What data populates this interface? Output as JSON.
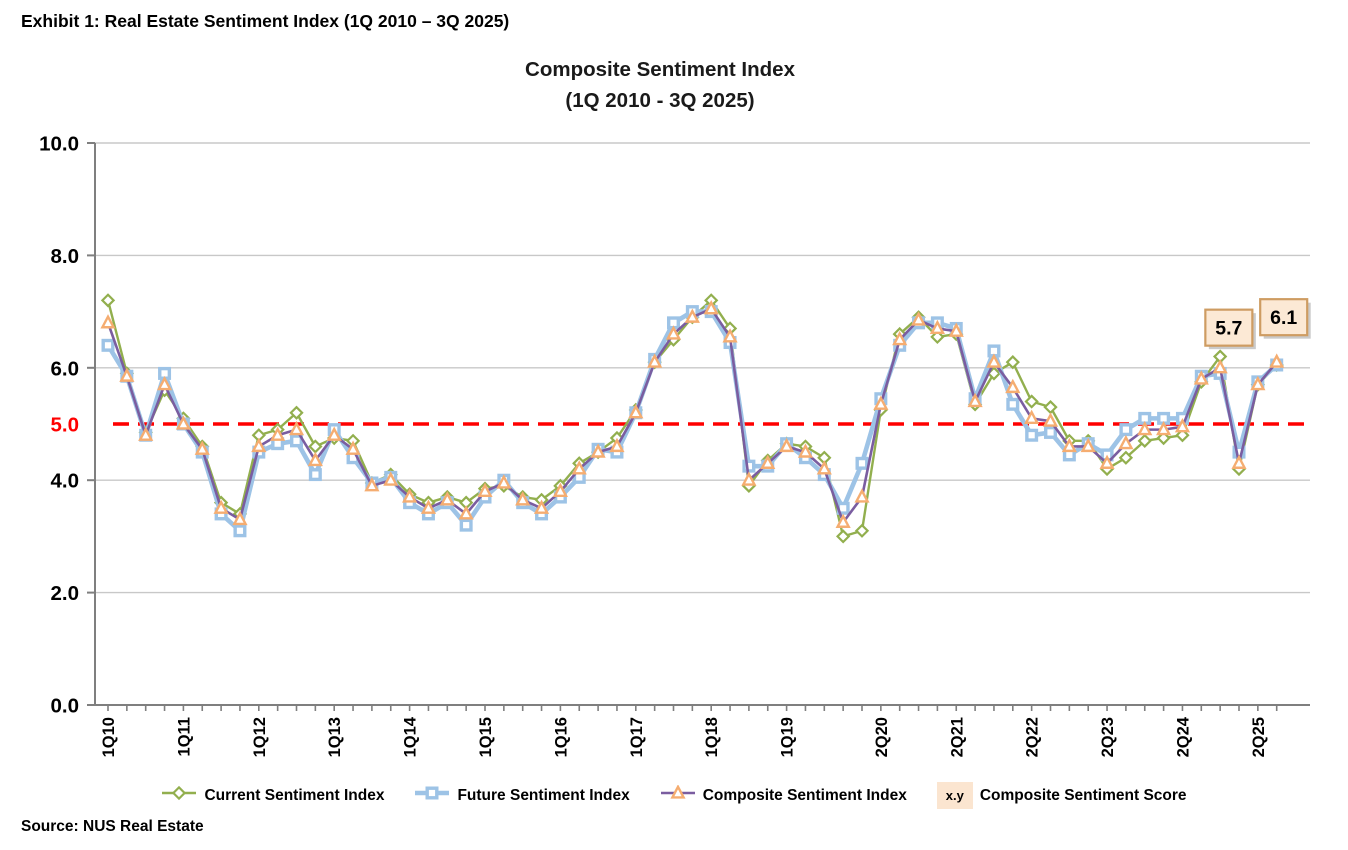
{
  "exhibit_title": "Exhibit 1: Real Estate Sentiment Index (1Q 2010 – 3Q 2025)",
  "source": "Source: NUS Real Estate",
  "chart_data": {
    "type": "line",
    "title": "Composite Sentiment Index",
    "subtitle": "(1Q 2010 - 3Q 2025)",
    "xlabel": "",
    "ylabel": "",
    "ylim": [
      0,
      10
    ],
    "grid": true,
    "legend_position": "bottom",
    "yticks": [
      0,
      2,
      4,
      6,
      8,
      10
    ],
    "ytick_labels": [
      "0.0",
      "2.0",
      "4.0",
      "6.0",
      "8.0",
      "10.0"
    ],
    "reference_line": {
      "value": 5.0,
      "label": "5.0",
      "color": "#FF0000",
      "style": "dashed"
    },
    "categories": [
      "1Q10",
      "2Q10",
      "3Q10",
      "4Q10",
      "1Q11",
      "2Q11",
      "3Q11",
      "4Q11",
      "1Q12",
      "2Q12",
      "3Q12",
      "4Q12",
      "1Q13",
      "2Q13",
      "3Q13",
      "4Q13",
      "1Q14",
      "2Q14",
      "3Q14",
      "4Q14",
      "1Q15",
      "2Q15",
      "3Q15",
      "4Q15",
      "1Q16",
      "2Q16",
      "3Q16",
      "4Q16",
      "1Q17",
      "2Q17",
      "3Q17",
      "4Q17",
      "1Q18",
      "2Q18",
      "3Q18",
      "4Q18",
      "1Q19",
      "2Q19",
      "3Q19",
      "4Q19",
      "1Q20",
      "2Q20",
      "3Q20",
      "4Q20",
      "1Q21",
      "2Q21",
      "3Q21",
      "4Q21",
      "1Q22",
      "2Q22",
      "3Q22",
      "4Q22",
      "1Q23",
      "2Q23",
      "3Q23",
      "4Q23",
      "1Q24",
      "2Q24",
      "3Q24",
      "4Q24",
      "1Q25",
      "2Q25",
      "3Q25"
    ],
    "xtick_labels": [
      "1Q10",
      "1Q11",
      "1Q12",
      "1Q13",
      "1Q14",
      "1Q15",
      "1Q16",
      "1Q17",
      "1Q18",
      "1Q19",
      "2Q20",
      "2Q21",
      "2Q22",
      "2Q23",
      "2Q24",
      "2Q25"
    ],
    "series": [
      {
        "name": "Current Sentiment Index",
        "marker": "diamond",
        "line_color": "#92AF4E",
        "marker_color": "#92AF4E",
        "line_width": 2.4,
        "values": [
          7.2,
          5.9,
          4.85,
          5.6,
          5.1,
          4.6,
          3.6,
          3.4,
          4.8,
          4.9,
          5.2,
          4.6,
          4.75,
          4.7,
          3.95,
          4.1,
          3.75,
          3.6,
          3.7,
          3.6,
          3.85,
          3.9,
          3.7,
          3.65,
          3.9,
          4.3,
          4.5,
          4.75,
          5.25,
          6.1,
          6.5,
          6.9,
          7.2,
          6.7,
          3.9,
          4.35,
          4.65,
          4.6,
          4.4,
          3.0,
          3.1,
          5.25,
          6.6,
          6.9,
          6.55,
          6.6,
          5.35,
          5.9,
          6.1,
          5.4,
          5.3,
          4.7,
          4.7,
          4.2,
          4.4,
          4.7,
          4.75,
          4.8,
          5.75,
          6.2,
          4.2,
          5.7,
          6.05
        ]
      },
      {
        "name": "Future Sentiment Index",
        "marker": "square",
        "line_color": "#9DC3E6",
        "marker_color": "#9DC3E6",
        "line_width": 4.6,
        "values": [
          6.4,
          5.85,
          4.8,
          5.9,
          5.0,
          4.5,
          3.4,
          3.1,
          4.5,
          4.65,
          4.7,
          4.1,
          4.9,
          4.4,
          3.95,
          4.05,
          3.6,
          3.4,
          3.6,
          3.2,
          3.7,
          4.0,
          3.6,
          3.4,
          3.7,
          4.05,
          4.55,
          4.5,
          5.2,
          6.15,
          6.8,
          7.0,
          7.0,
          6.45,
          4.25,
          4.25,
          4.65,
          4.4,
          4.1,
          3.5,
          4.3,
          5.45,
          6.4,
          6.8,
          6.8,
          6.7,
          5.45,
          6.3,
          5.35,
          4.8,
          4.85,
          4.45,
          4.65,
          4.45,
          4.9,
          5.1,
          5.1,
          5.1,
          5.85,
          5.9,
          4.5,
          5.75,
          6.05
        ]
      },
      {
        "name": "Composite Sentiment Index",
        "marker": "triangle",
        "line_color": "#7A5DA0",
        "marker_color": "#F5AD71",
        "line_width": 2.6,
        "values": [
          6.8,
          5.85,
          4.8,
          5.7,
          5.0,
          4.55,
          3.5,
          3.3,
          4.6,
          4.8,
          4.9,
          4.35,
          4.8,
          4.55,
          3.9,
          4.0,
          3.7,
          3.5,
          3.65,
          3.4,
          3.8,
          3.95,
          3.65,
          3.5,
          3.8,
          4.2,
          4.5,
          4.6,
          5.2,
          6.1,
          6.6,
          6.9,
          7.05,
          6.55,
          4.0,
          4.3,
          4.6,
          4.5,
          4.2,
          3.25,
          3.7,
          5.35,
          6.5,
          6.85,
          6.7,
          6.65,
          5.4,
          6.1,
          5.65,
          5.1,
          5.05,
          4.6,
          4.6,
          4.3,
          4.65,
          4.9,
          4.9,
          4.95,
          5.8,
          6.0,
          4.3,
          5.7,
          6.1
        ]
      }
    ],
    "annotations": [
      {
        "label": "5.7",
        "value": 5.7,
        "category": "2Q25"
      },
      {
        "label": "6.1",
        "value": 6.1,
        "category": "3Q25"
      }
    ],
    "annotation_style": {
      "fill": "#FCE9D5",
      "border": "#CE9C62"
    },
    "score_legend": {
      "symbol": "x.y",
      "label": "Composite Sentiment Score"
    }
  }
}
